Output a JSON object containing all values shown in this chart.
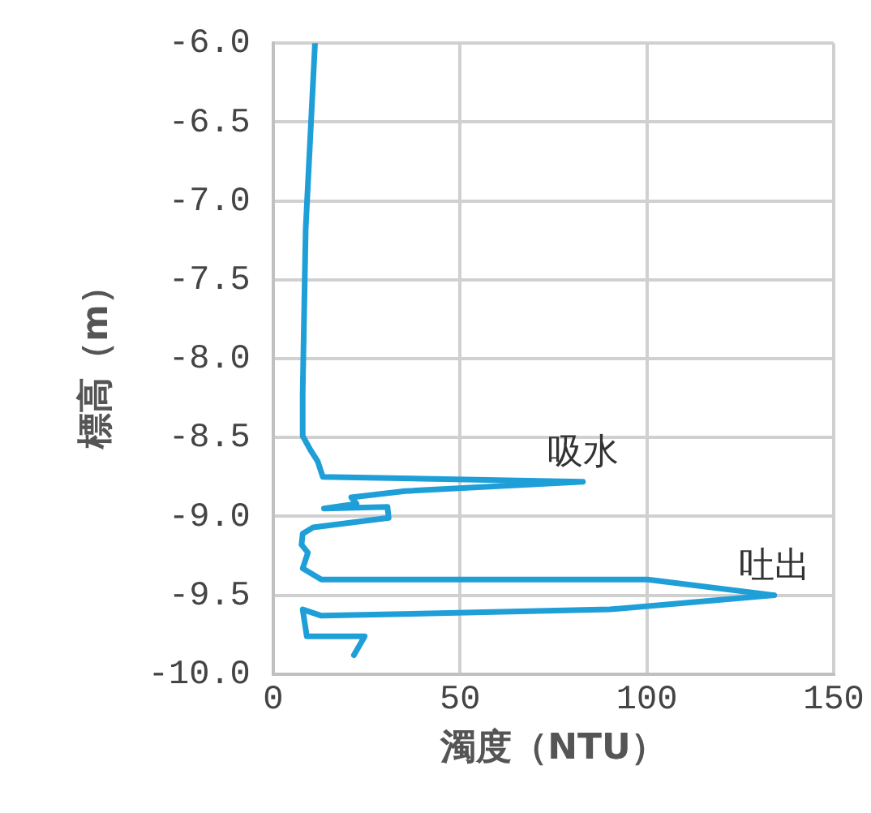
{
  "chart_data": {
    "type": "line",
    "xlabel": "濁度（NTU）",
    "ylabel": "標高（m）",
    "xlim": [
      0,
      150
    ],
    "xticks": [
      0,
      50,
      100,
      150
    ],
    "ylim": [
      -10,
      -6
    ],
    "yticks": [
      {
        "value": -6,
        "label": "-6.0"
      },
      {
        "value": -6.5,
        "label": "-6.5"
      },
      {
        "value": -7,
        "label": "-7.0"
      },
      {
        "value": -7.5,
        "label": "-7.5"
      },
      {
        "value": -8,
        "label": "-8.0"
      },
      {
        "value": -8.5,
        "label": "-8.5"
      },
      {
        "value": -9,
        "label": "-9.0"
      },
      {
        "value": -9.5,
        "label": "-9.5"
      },
      {
        "value": -10,
        "label": "-10.0"
      }
    ],
    "grid": true,
    "legend": false,
    "marker": "none",
    "line_style": "solid",
    "series": [
      {
        "color": "#1f9fd8",
        "x": [
          11.2,
          8.7,
          7.9,
          7.9,
          10.0,
          11.9,
          13.3,
          82.9,
          35.3,
          20.9,
          22.3,
          13.6,
          30.6,
          30.9,
          10.7,
          7.9,
          7.6,
          9.3,
          7.9,
          12.9,
          100.2,
          134.1,
          90.1,
          12.9,
          7.9,
          9.0,
          24.5,
          21.6
        ],
        "values": [
          -6.0,
          -7.18,
          -8.22,
          -8.49,
          -8.58,
          -8.65,
          -8.75,
          -8.78,
          -8.84,
          -8.88,
          -8.92,
          -8.95,
          -8.94,
          -9.01,
          -9.07,
          -9.11,
          -9.18,
          -9.23,
          -9.33,
          -9.4,
          -9.4,
          -9.5,
          -9.59,
          -9.63,
          -9.59,
          -9.76,
          -9.76,
          -9.88
        ]
      }
    ],
    "annotations": [
      {
        "text": "吸水",
        "x": 82.9,
        "y": -8.78
      },
      {
        "text": "吐出",
        "x": 134.1,
        "y": -9.5
      }
    ]
  }
}
